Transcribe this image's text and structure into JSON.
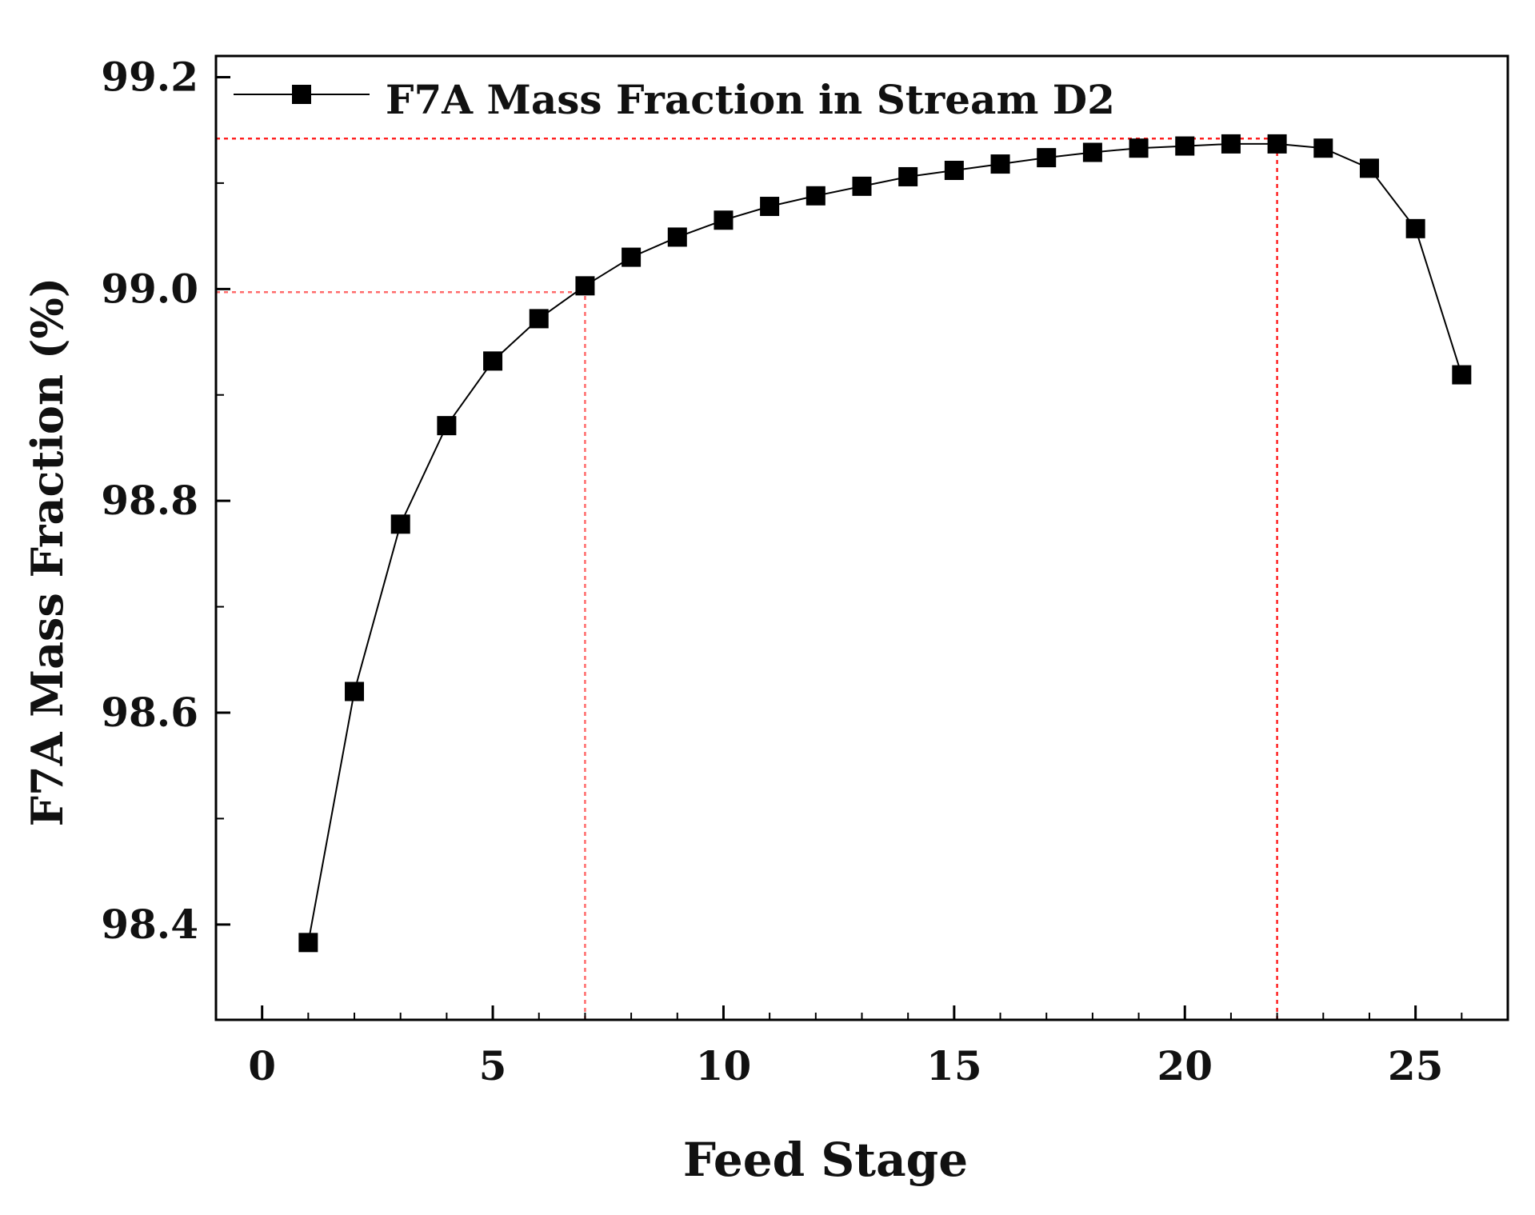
{
  "chart_data": {
    "type": "line",
    "title": "",
    "xlabel": "Feed Stage",
    "ylabel": "F7A Mass Fraction (%)",
    "xlim": [
      -1,
      27
    ],
    "ylim": [
      98.31,
      99.22
    ],
    "x_ticks": [
      0,
      5,
      10,
      15,
      20,
      25
    ],
    "x_tick_labels": [
      "0",
      "5",
      "10",
      "15",
      "20",
      "25"
    ],
    "y_ticks": [
      98.4,
      98.6,
      98.8,
      99.0,
      99.2
    ],
    "y_tick_labels": [
      "98.4",
      "98.6",
      "98.8",
      "99.0",
      "99.2"
    ],
    "y_minor_ticks": [
      98.5,
      98.7,
      98.9,
      99.1
    ],
    "grid": false,
    "legend_position": "top-left",
    "series": [
      {
        "name": "F7A Mass Fraction in Stream D2",
        "color": "#000000",
        "marker": "square",
        "x": [
          1,
          2,
          3,
          4,
          5,
          6,
          7,
          8,
          9,
          10,
          11,
          12,
          13,
          14,
          15,
          16,
          17,
          18,
          19,
          20,
          21,
          22,
          23,
          24,
          25,
          26
        ],
        "y": [
          98.383,
          98.62,
          98.778,
          98.871,
          98.932,
          98.972,
          99.003,
          99.03,
          99.049,
          99.065,
          99.078,
          99.088,
          99.097,
          99.106,
          99.112,
          99.118,
          99.124,
          99.129,
          99.133,
          99.135,
          99.137,
          99.137,
          99.133,
          99.114,
          99.057,
          98.919
        ]
      }
    ],
    "reference_lines": [
      {
        "orientation": "horizontal",
        "value": 98.997,
        "x_from": -1,
        "x_to": 7.0,
        "color": "#ff6b6b"
      },
      {
        "orientation": "vertical",
        "value": 7.0,
        "y_from": 98.31,
        "y_to": 98.997,
        "color": "#ff6b6b"
      },
      {
        "orientation": "horizontal",
        "value": 99.142,
        "x_from": -1,
        "x_to": 22.0,
        "color": "#ff2020"
      },
      {
        "orientation": "vertical",
        "value": 22.0,
        "y_from": 98.31,
        "y_to": 99.142,
        "color": "#ff2020"
      }
    ]
  }
}
